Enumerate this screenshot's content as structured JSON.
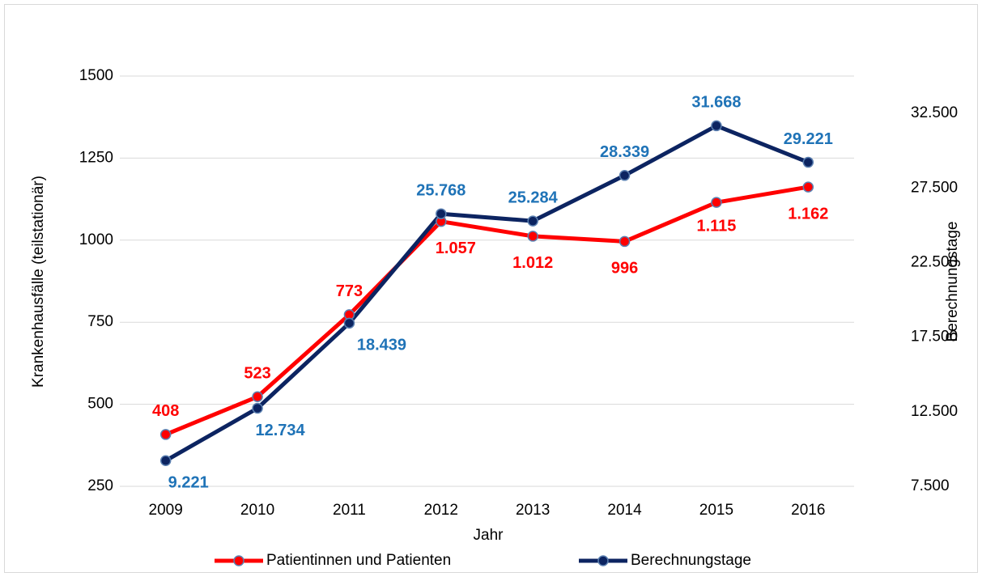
{
  "chart_data": {
    "type": "line",
    "x_label": "Jahr",
    "y_label": "Krankenhausfälle (teilstationär)",
    "y2_label": "Berechnungstage",
    "categories": [
      "2009",
      "2010",
      "2011",
      "2012",
      "2013",
      "2014",
      "2015",
      "2016"
    ],
    "series": [
      {
        "name": "Patientinnen und Patienten",
        "color": "#ff0000",
        "label_color": "#ff0000",
        "values": [
          408,
          523,
          773,
          1057,
          1012,
          996,
          1115,
          1162
        ],
        "value_labels": [
          "408",
          "523",
          "773",
          "1.057",
          "1.012",
          "996",
          "1.115",
          "1.162"
        ]
      },
      {
        "name": "Berechnungstage",
        "color": "#0c2461",
        "label_color": "#1f73b7",
        "axis": "y2",
        "values": [
          9221,
          12734,
          18439,
          25768,
          25284,
          28339,
          31668,
          29221
        ],
        "value_labels": [
          "9.221",
          "12.734",
          "18.439",
          "25.768",
          "25.284",
          "28.339",
          "31.668",
          "29.221"
        ]
      }
    ],
    "ylim": [
      250,
      1500
    ],
    "yticks": [
      250,
      500,
      750,
      1000,
      1250,
      1500
    ],
    "y2lim": [
      7500,
      35000
    ],
    "y2ticks": [
      {
        "value": 7500,
        "label": "7.500"
      },
      {
        "value": 12500,
        "label": "12.500"
      },
      {
        "value": 17500,
        "label": "17.500"
      },
      {
        "value": 22500,
        "label": "22.500"
      },
      {
        "value": 27500,
        "label": "27.500"
      },
      {
        "value": 32500,
        "label": "32.500"
      }
    ],
    "grid": true,
    "legend": "bottom"
  }
}
